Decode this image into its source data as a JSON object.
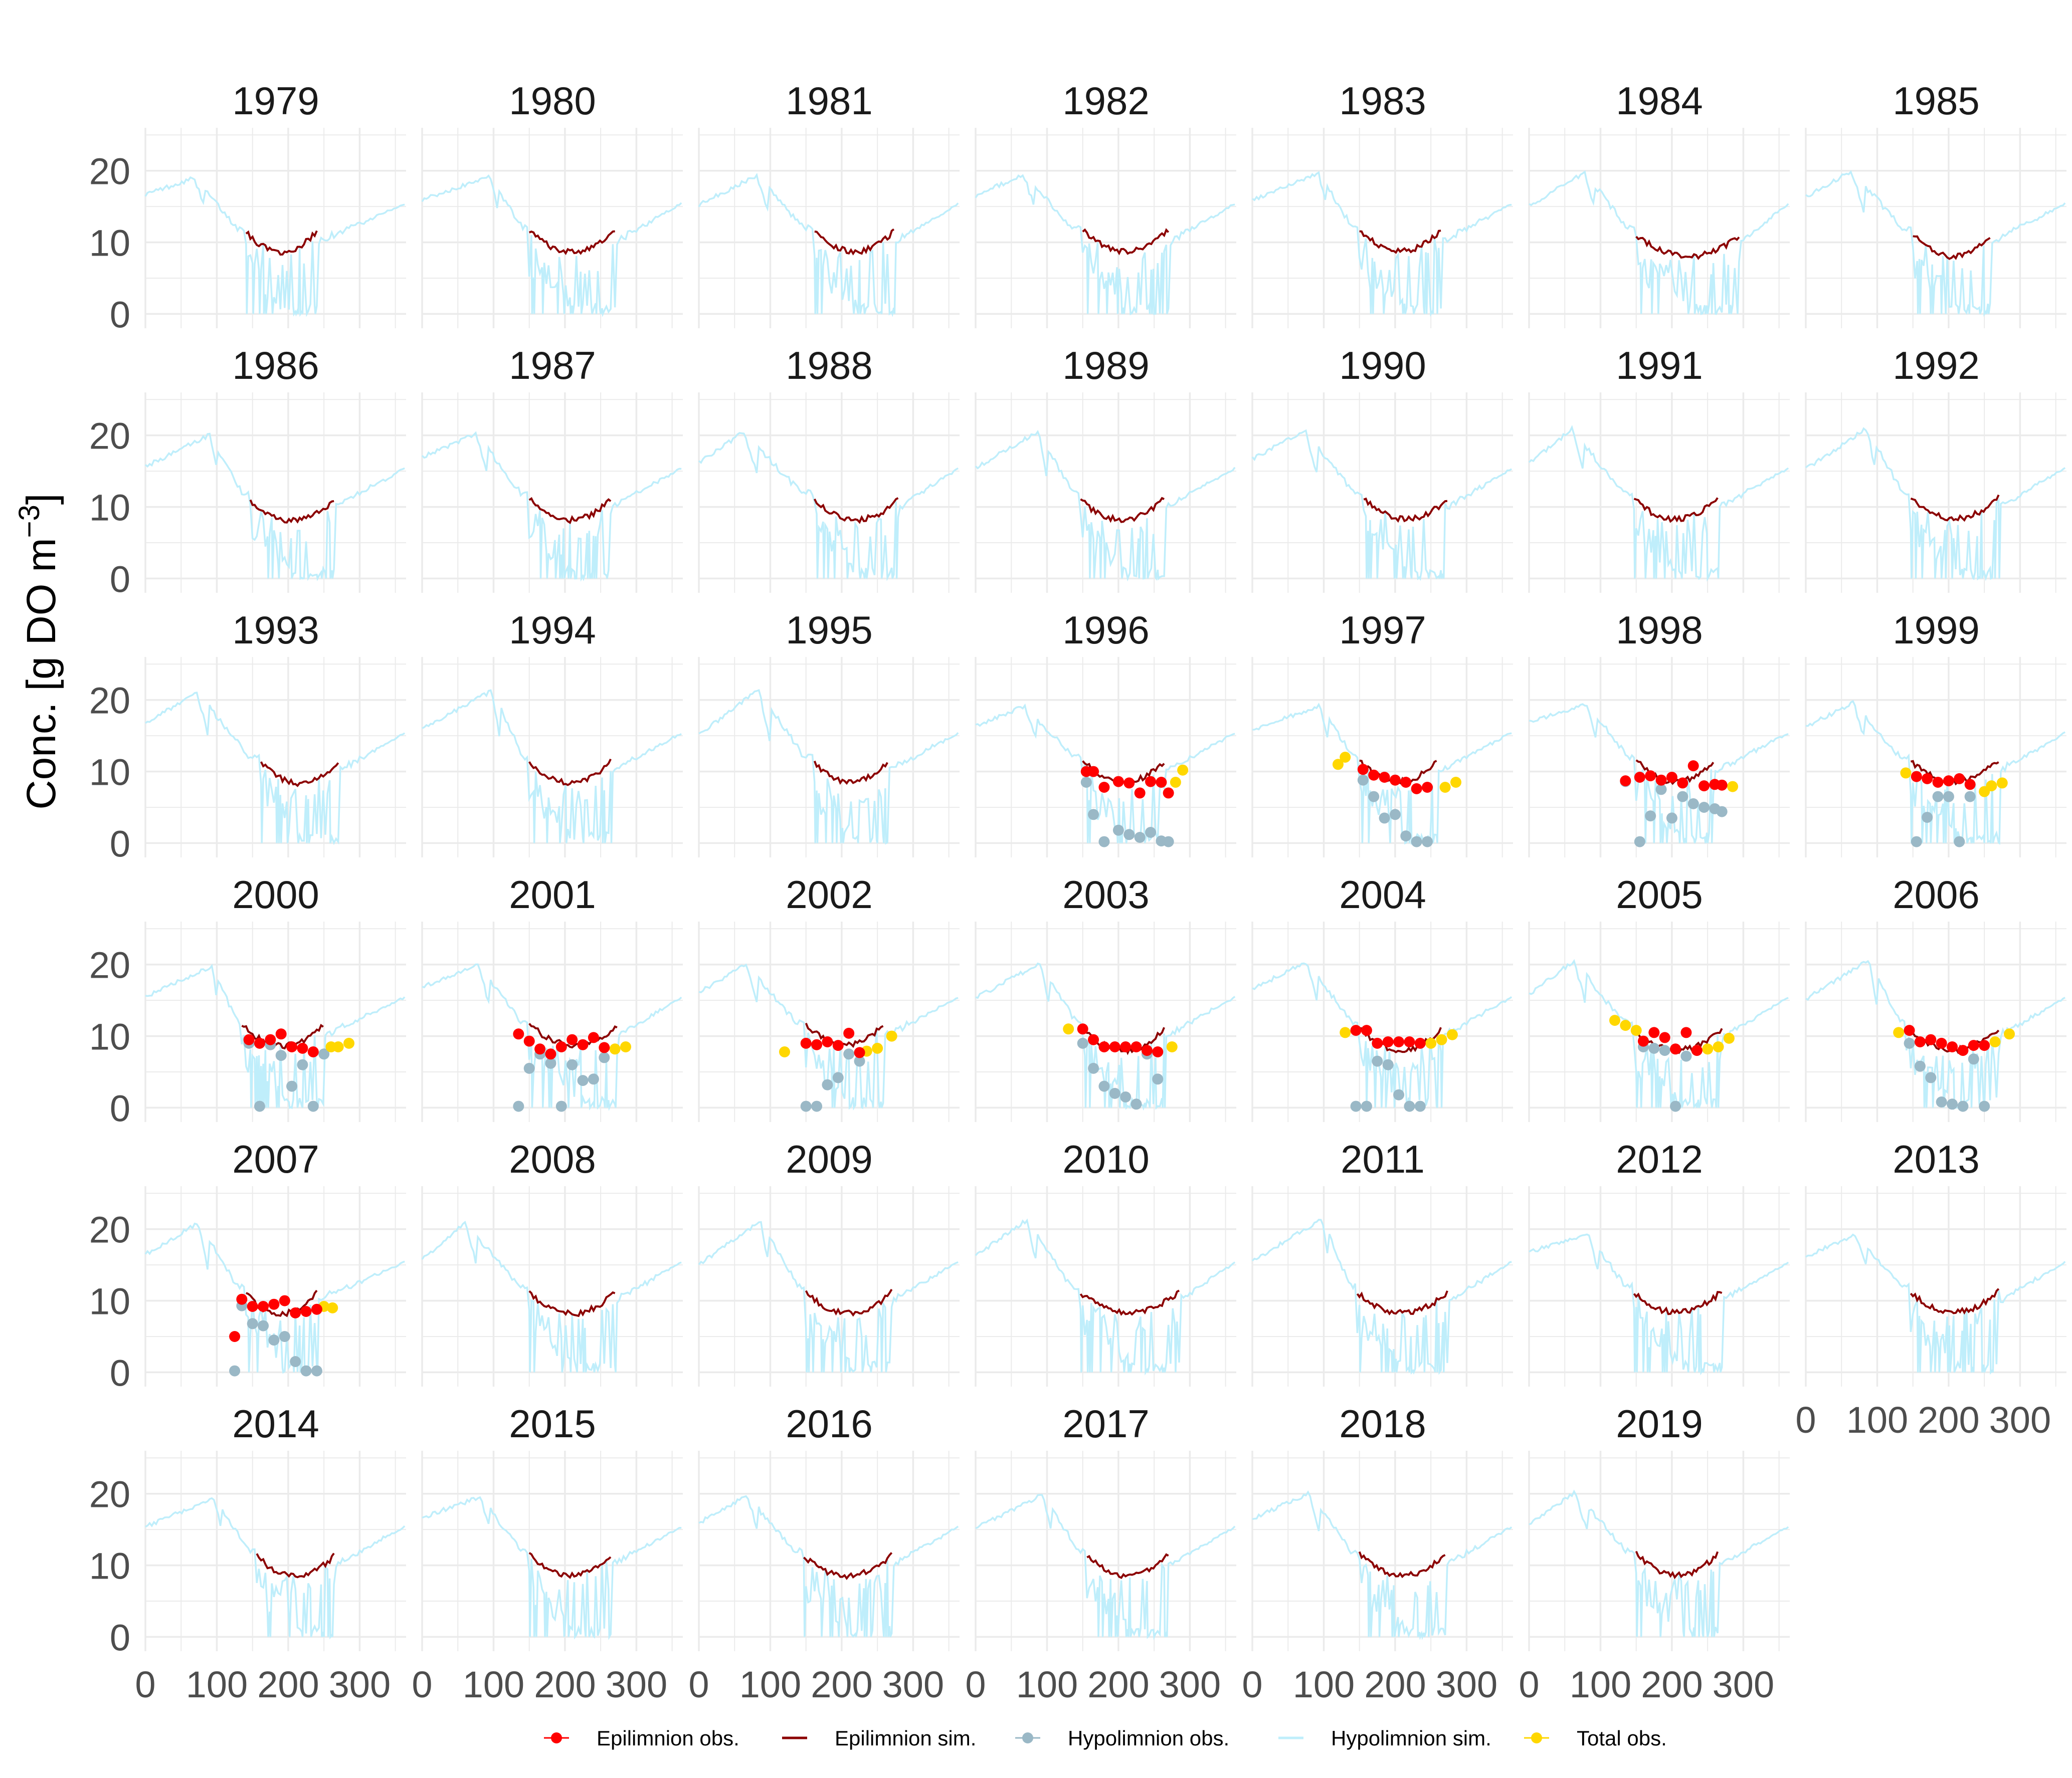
{
  "chart_data": {
    "type": "line",
    "layout": "faceted small multiples by year",
    "ylabel_main": "Conc. [g DO m",
    "ylabel_sup": "−3",
    "ylabel_close": "]",
    "xlim": [
      0,
      365
    ],
    "ylim": [
      -2,
      26
    ],
    "x_ticks": [
      0,
      100,
      200,
      300
    ],
    "y_ticks": [
      0,
      10,
      20
    ],
    "x_tick_labels": [
      "0",
      "100",
      "200",
      "300"
    ],
    "y_tick_labels": [
      "0",
      "10",
      "20"
    ],
    "grid": true,
    "legend_position": "bottom",
    "legend": [
      {
        "label": "Epilimnion obs.",
        "kind": "point",
        "color": "#ff0000"
      },
      {
        "label": "Epilimnion sim.",
        "kind": "line",
        "color": "#8b0000"
      },
      {
        "label": "Hypolimnion obs.",
        "kind": "point",
        "color": "#9ab8c6"
      },
      {
        "label": "Hypolimnion sim.",
        "kind": "line",
        "color": "#bfeefb"
      },
      {
        "label": "Total obs.",
        "kind": "point",
        "color": "#ffd700"
      }
    ],
    "colors": {
      "epi_obs": "#ff0000",
      "epi_sim": "#8b0000",
      "hypo_obs": "#9ab8c6",
      "hypo_sim": "#bfeefb",
      "total_obs": "#ffd700",
      "grid": "#ebebeb",
      "text": "#4d4d4d"
    },
    "years": [
      "1979",
      "1980",
      "1981",
      "1982",
      "1983",
      "1984",
      "1985",
      "1986",
      "1987",
      "1988",
      "1989",
      "1990",
      "1991",
      "1992",
      "1993",
      "1994",
      "1995",
      "1996",
      "1997",
      "1998",
      "1999",
      "2000",
      "2001",
      "2002",
      "2003",
      "2004",
      "2005",
      "2006",
      "2007",
      "2008",
      "2009",
      "2010",
      "2011",
      "2012",
      "2013",
      "2014",
      "2015",
      "2016",
      "2017",
      "2018",
      "2019"
    ],
    "strat_periods": {
      "1979": [
        140,
        240
      ],
      "1980": [
        150,
        270
      ],
      "1981": [
        160,
        275
      ],
      "1982": [
        150,
        270
      ],
      "1983": [
        150,
        265
      ],
      "1984": [
        150,
        295
      ],
      "1985": [
        150,
        260
      ],
      "1986": [
        145,
        265
      ],
      "1987": [
        150,
        265
      ],
      "1988": [
        160,
        280
      ],
      "1989": [
        145,
        265
      ],
      "1990": [
        155,
        275
      ],
      "1991": [
        145,
        265
      ],
      "1992": [
        145,
        270
      ],
      "1993": [
        160,
        270
      ],
      "1994": [
        150,
        265
      ],
      "1995": [
        160,
        265
      ],
      "1996": [
        150,
        265
      ],
      "1997": [
        150,
        260
      ],
      "1998": [
        150,
        260
      ],
      "1999": [
        145,
        270
      ],
      "2000": [
        135,
        250
      ],
      "2001": [
        150,
        275
      ],
      "2002": [
        150,
        260
      ],
      "2003": [
        150,
        265
      ],
      "2004": [
        150,
        265
      ],
      "2005": [
        145,
        270
      ],
      "2006": [
        140,
        270
      ],
      "2007": [
        140,
        240
      ],
      "2008": [
        150,
        270
      ],
      "2009": [
        150,
        270
      ],
      "2010": [
        145,
        285
      ],
      "2011": [
        145,
        275
      ],
      "2012": [
        145,
        270
      ],
      "2013": [
        145,
        270
      ],
      "2014": [
        155,
        265
      ],
      "2015": [
        150,
        265
      ],
      "2016": [
        145,
        270
      ],
      "2017": [
        155,
        270
      ],
      "2018": [
        150,
        270
      ],
      "2019": [
        150,
        265
      ]
    },
    "observations": {
      "1996": {
        "epi": [
          [
            155,
            10
          ],
          [
            165,
            10
          ],
          [
            180,
            7.8
          ],
          [
            200,
            8.6
          ],
          [
            215,
            8.4
          ],
          [
            230,
            7
          ],
          [
            245,
            8.6
          ],
          [
            260,
            8.5
          ],
          [
            270,
            7
          ]
        ],
        "hypo": [
          [
            155,
            8.5
          ],
          [
            165,
            4
          ],
          [
            180,
            0.2
          ],
          [
            200,
            1.8
          ],
          [
            215,
            1.2
          ],
          [
            230,
            0.8
          ],
          [
            245,
            1.5
          ],
          [
            260,
            0.3
          ],
          [
            270,
            0.2
          ]
        ],
        "total": [
          [
            280,
            8.5
          ],
          [
            290,
            10.2
          ]
        ]
      },
      "1997": {
        "epi": [
          [
            155,
            10.3
          ],
          [
            170,
            9.5
          ],
          [
            185,
            9.2
          ],
          [
            200,
            8.8
          ],
          [
            215,
            8.5
          ],
          [
            230,
            7.6
          ],
          [
            245,
            7.8
          ]
        ],
        "hypo": [
          [
            155,
            8.8
          ],
          [
            170,
            6.5
          ],
          [
            185,
            3.5
          ],
          [
            200,
            4
          ],
          [
            215,
            1
          ],
          [
            230,
            0.2
          ],
          [
            245,
            0.2
          ]
        ],
        "total": [
          [
            120,
            11
          ],
          [
            130,
            12
          ],
          [
            270,
            7.8
          ],
          [
            285,
            8.5
          ]
        ]
      },
      "1998": {
        "epi": [
          [
            135,
            8.7
          ],
          [
            155,
            9.2
          ],
          [
            170,
            9.4
          ],
          [
            185,
            8.8
          ],
          [
            200,
            9.2
          ],
          [
            215,
            8.4
          ],
          [
            230,
            10.8
          ],
          [
            245,
            8
          ],
          [
            260,
            8.2
          ],
          [
            270,
            8.1
          ]
        ],
        "hypo": [
          [
            135,
            8.6
          ],
          [
            155,
            0.2
          ],
          [
            170,
            3.8
          ],
          [
            185,
            7.5
          ],
          [
            200,
            3.5
          ],
          [
            215,
            6.5
          ],
          [
            230,
            5.5
          ],
          [
            245,
            5
          ],
          [
            260,
            4.8
          ],
          [
            270,
            4.4
          ]
        ],
        "total": [
          [
            285,
            7.9
          ]
        ]
      },
      "1999": {
        "epi": [
          [
            155,
            9.3
          ],
          [
            170,
            9
          ],
          [
            185,
            8.5
          ],
          [
            200,
            8.7
          ],
          [
            215,
            9
          ],
          [
            230,
            8.2
          ]
        ],
        "hypo": [
          [
            155,
            0.2
          ],
          [
            170,
            3.6
          ],
          [
            185,
            6.5
          ],
          [
            200,
            6.5
          ],
          [
            215,
            0.2
          ],
          [
            230,
            6.5
          ]
        ],
        "total": [
          [
            140,
            9.8
          ],
          [
            250,
            7.2
          ],
          [
            260,
            8
          ],
          [
            275,
            8.4
          ]
        ]
      },
      "2000": {
        "epi": [
          [
            145,
            9.5
          ],
          [
            160,
            9
          ],
          [
            175,
            9.5
          ],
          [
            190,
            10.3
          ],
          [
            205,
            8.5
          ],
          [
            220,
            8.3
          ],
          [
            235,
            7.8
          ]
        ],
        "hypo": [
          [
            145,
            9
          ],
          [
            160,
            0.2
          ],
          [
            175,
            8.8
          ],
          [
            190,
            7.3
          ],
          [
            205,
            3
          ],
          [
            220,
            6
          ],
          [
            235,
            0.2
          ],
          [
            250,
            7.5
          ]
        ],
        "total": [
          [
            260,
            8.5
          ],
          [
            270,
            8.5
          ],
          [
            285,
            9
          ]
        ]
      },
      "2001": {
        "epi": [
          [
            135,
            10.3
          ],
          [
            150,
            9.3
          ],
          [
            165,
            8.2
          ],
          [
            180,
            7.5
          ],
          [
            195,
            8.5
          ],
          [
            210,
            9.5
          ],
          [
            225,
            8.8
          ],
          [
            240,
            9.8
          ],
          [
            255,
            8.4
          ]
        ],
        "hypo": [
          [
            135,
            0.2
          ],
          [
            150,
            5.5
          ],
          [
            165,
            7.5
          ],
          [
            180,
            6.2
          ],
          [
            195,
            0.2
          ],
          [
            210,
            6
          ],
          [
            225,
            3.8
          ],
          [
            240,
            4
          ],
          [
            255,
            7
          ]
        ],
        "total": [
          [
            270,
            8.2
          ],
          [
            285,
            8.5
          ]
        ]
      },
      "2002": {
        "epi": [
          [
            150,
            9
          ],
          [
            165,
            8.8
          ],
          [
            180,
            9.2
          ],
          [
            195,
            8.7
          ],
          [
            210,
            10.4
          ],
          [
            225,
            7.7
          ]
        ],
        "hypo": [
          [
            150,
            0.2
          ],
          [
            165,
            0.2
          ],
          [
            180,
            3.2
          ],
          [
            195,
            4.2
          ],
          [
            210,
            7.5
          ],
          [
            225,
            6.5
          ]
        ],
        "total": [
          [
            120,
            7.8
          ],
          [
            235,
            7.9
          ],
          [
            250,
            8.3
          ],
          [
            270,
            10
          ]
        ]
      },
      "2003": {
        "epi": [
          [
            150,
            11
          ],
          [
            165,
            9.5
          ],
          [
            180,
            8.5
          ],
          [
            195,
            8.5
          ],
          [
            210,
            8.5
          ],
          [
            225,
            8.5
          ],
          [
            240,
            8
          ],
          [
            255,
            7.8
          ]
        ],
        "hypo": [
          [
            150,
            9
          ],
          [
            165,
            5.5
          ],
          [
            180,
            3
          ],
          [
            195,
            2
          ],
          [
            210,
            1.5
          ],
          [
            225,
            0.5
          ],
          [
            240,
            7.5
          ],
          [
            255,
            4
          ]
        ],
        "total": [
          [
            130,
            11
          ],
          [
            275,
            8.5
          ]
        ]
      },
      "2004": {
        "epi": [
          [
            145,
            10.8
          ],
          [
            160,
            10.8
          ],
          [
            175,
            9
          ],
          [
            190,
            9.2
          ],
          [
            205,
            9.2
          ],
          [
            220,
            9.2
          ],
          [
            235,
            9
          ]
        ],
        "hypo": [
          [
            145,
            0.2
          ],
          [
            160,
            0.2
          ],
          [
            175,
            6.5
          ],
          [
            190,
            6
          ],
          [
            205,
            1.8
          ],
          [
            220,
            0.2
          ],
          [
            235,
            0.2
          ]
        ],
        "total": [
          [
            130,
            10.5
          ],
          [
            250,
            9
          ],
          [
            265,
            9.5
          ],
          [
            280,
            10.2
          ]
        ]
      },
      "2005": {
        "epi": [
          [
            160,
            9.3
          ],
          [
            175,
            10.5
          ],
          [
            190,
            9.8
          ],
          [
            205,
            8.2
          ],
          [
            220,
            10.5
          ],
          [
            235,
            8
          ]
        ],
        "hypo": [
          [
            160,
            8.5
          ],
          [
            175,
            8.3
          ],
          [
            190,
            8
          ],
          [
            205,
            0.2
          ],
          [
            220,
            7.2
          ],
          [
            235,
            8
          ]
        ],
        "total": [
          [
            120,
            12.2
          ],
          [
            135,
            11.5
          ],
          [
            150,
            10.8
          ],
          [
            250,
            8.2
          ],
          [
            265,
            8.5
          ],
          [
            280,
            9.7
          ]
        ]
      },
      "2006": {
        "epi": [
          [
            145,
            10.8
          ],
          [
            160,
            9.2
          ],
          [
            175,
            9.5
          ],
          [
            190,
            9
          ],
          [
            205,
            8.5
          ],
          [
            220,
            8
          ],
          [
            235,
            8.7
          ],
          [
            250,
            8.7
          ]
        ],
        "hypo": [
          [
            145,
            9
          ],
          [
            160,
            5.8
          ],
          [
            175,
            4.2
          ],
          [
            190,
            0.8
          ],
          [
            205,
            0.5
          ],
          [
            220,
            0.2
          ],
          [
            235,
            6.8
          ],
          [
            250,
            0.2
          ]
        ],
        "total": [
          [
            130,
            10.5
          ],
          [
            265,
            9.2
          ],
          [
            285,
            10.3
          ]
        ]
      },
      "2007": {
        "epi": [
          [
            125,
            5
          ],
          [
            135,
            10.2
          ],
          [
            150,
            9.2
          ],
          [
            165,
            9.2
          ],
          [
            180,
            9.5
          ],
          [
            195,
            10
          ],
          [
            210,
            8.3
          ],
          [
            225,
            8.5
          ],
          [
            240,
            8.8
          ]
        ],
        "hypo": [
          [
            125,
            0.2
          ],
          [
            135,
            9.3
          ],
          [
            150,
            6.8
          ],
          [
            165,
            6.5
          ],
          [
            180,
            4.5
          ],
          [
            195,
            5
          ],
          [
            210,
            1.5
          ],
          [
            225,
            0.2
          ],
          [
            240,
            0.2
          ]
        ],
        "total": [
          [
            250,
            9.2
          ],
          [
            262,
            9
          ]
        ]
      }
    }
  }
}
